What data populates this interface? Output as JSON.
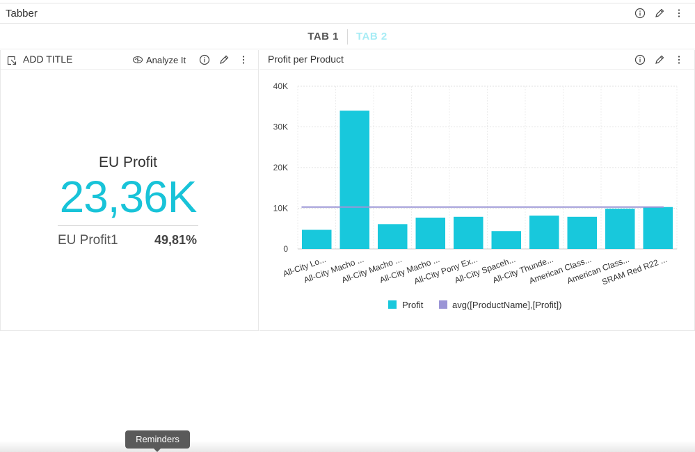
{
  "tabber": {
    "title": "Tabber"
  },
  "tabs": [
    {
      "label": "TAB 1",
      "active": true
    },
    {
      "label": "TAB 2",
      "active": false
    }
  ],
  "kpi_widget": {
    "title": "ADD TITLE",
    "analyze_label": "Analyze It",
    "kpi_label": "EU Profit",
    "kpi_value": "23,36K",
    "sub_label": "EU Profit1",
    "sub_value": "49,81%",
    "accent_color": "#18c3d8"
  },
  "chart_widget": {
    "title": "Profit per Product"
  },
  "chart_data": {
    "type": "bar",
    "categories": [
      "All-City Lo...",
      "All-City Macho ...",
      "All-City Macho ...",
      "All-City Macho ...",
      "All-City Pony Ex...",
      "All-City Spaceh...",
      "All-City Thunde...",
      "American Class...",
      "American Class...",
      "SRAM Red R22 ..."
    ],
    "series": [
      {
        "name": "Profit",
        "values": [
          4700,
          34000,
          6100,
          7700,
          7900,
          4400,
          8200,
          7900,
          9900,
          10300
        ],
        "color": "#18c8dc"
      },
      {
        "name": "avg([ProductName],[Profit])",
        "type": "line",
        "value": 10300,
        "color": "#9b95d6"
      }
    ],
    "yticks": [
      "0",
      "10K",
      "20K",
      "30K",
      "40K"
    ],
    "ylim": [
      0,
      40000
    ],
    "grid": true,
    "legend_position": "bottom"
  },
  "tooltip": {
    "text": "Reminders"
  },
  "icons": {
    "info": "info-icon",
    "edit": "pencil-icon",
    "more": "more-vertical-icon"
  }
}
